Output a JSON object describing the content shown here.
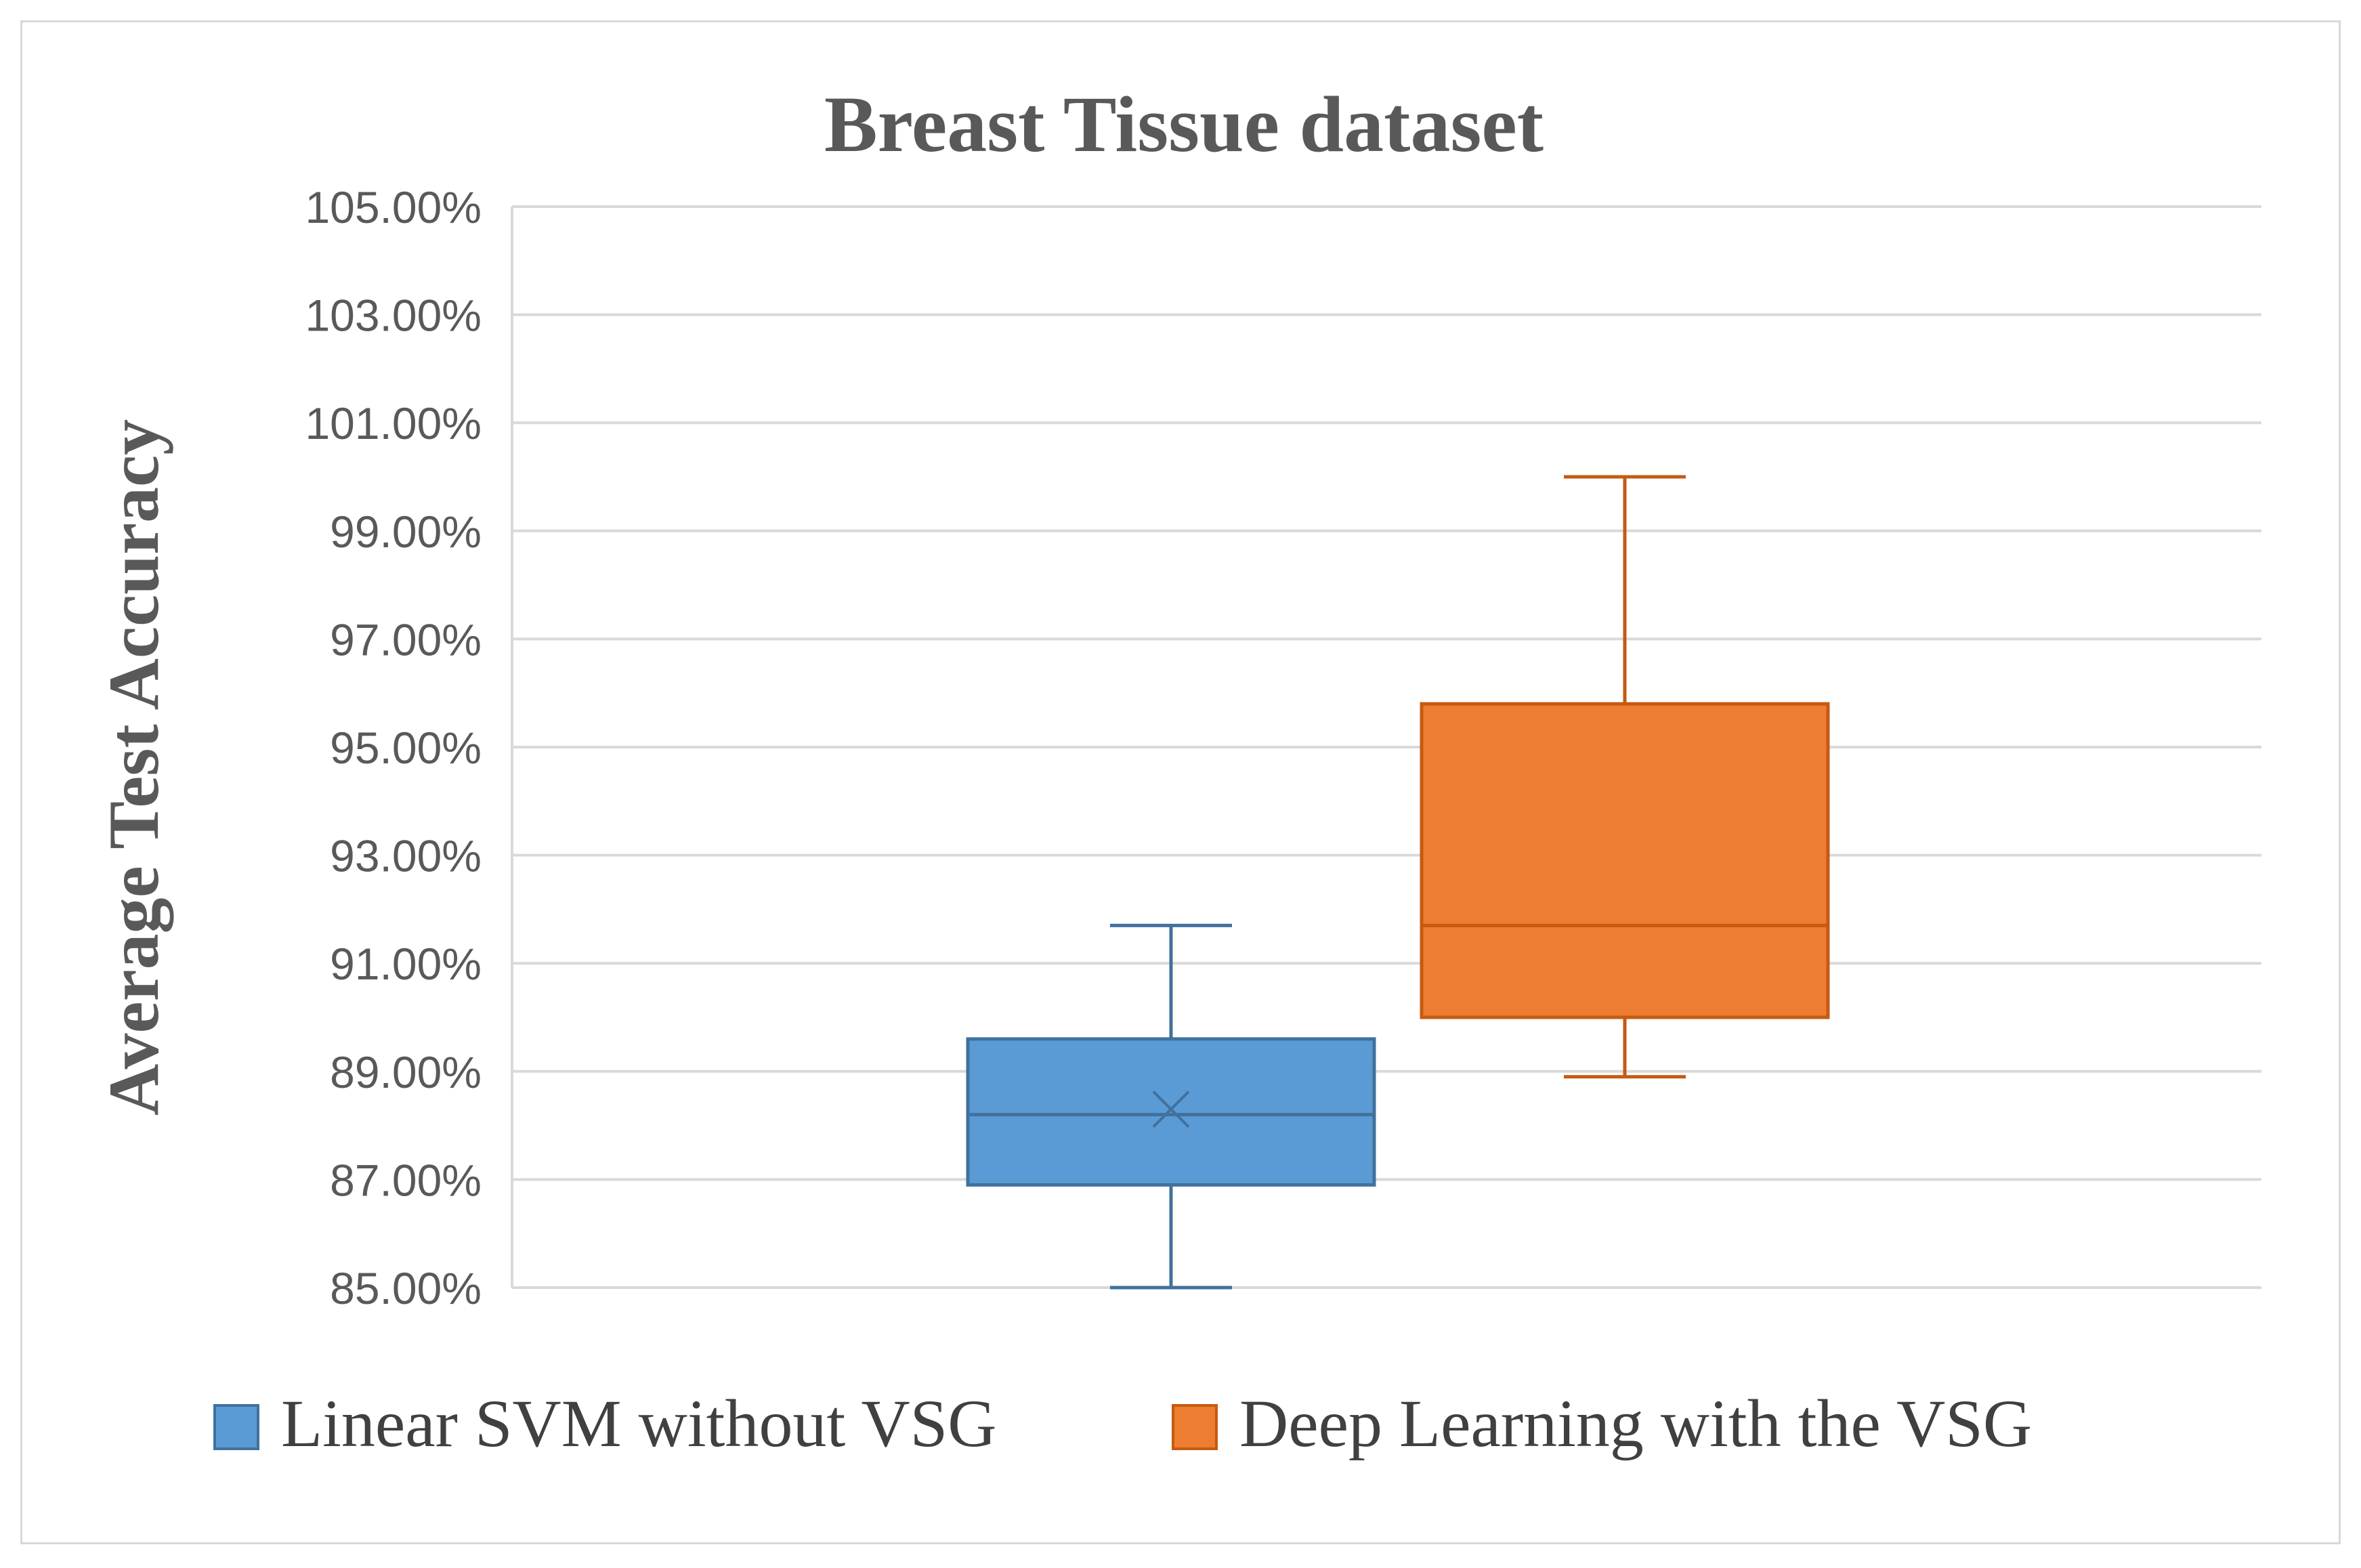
{
  "chart_data": {
    "type": "box",
    "title": "Breast Tissue dataset",
    "xlabel": "",
    "ylabel": "Average Test Accuracy",
    "ylim": [
      85,
      105
    ],
    "yticks": [
      {
        "value": 105,
        "label": "105.00%"
      },
      {
        "value": 103,
        "label": "103.00%"
      },
      {
        "value": 101,
        "label": "101.00%"
      },
      {
        "value": 99,
        "label": "99.00%"
      },
      {
        "value": 97,
        "label": "97.00%"
      },
      {
        "value": 95,
        "label": "95.00%"
      },
      {
        "value": 93,
        "label": "93.00%"
      },
      {
        "value": 91,
        "label": "91.00%"
      },
      {
        "value": 89,
        "label": "89.00%"
      },
      {
        "value": 87,
        "label": "87.00%"
      },
      {
        "value": 85,
        "label": "85.00%"
      }
    ],
    "grid": true,
    "legend_position": "bottom",
    "series": [
      {
        "name": "Linear SVM without VSG",
        "color": "#5b9bd5",
        "stroke": "#41719c",
        "whisker_low": 85.0,
        "q1": 86.9,
        "median": 88.2,
        "q3": 89.6,
        "whisker_high": 91.7,
        "mean": 88.3
      },
      {
        "name": "Deep Learning with the VSG",
        "color": "#ed7d31",
        "stroke": "#c55a11",
        "whisker_low": 88.9,
        "q1": 90.0,
        "median": 91.7,
        "q3": 95.8,
        "whisker_high": 100.0,
        "mean": null
      }
    ]
  }
}
